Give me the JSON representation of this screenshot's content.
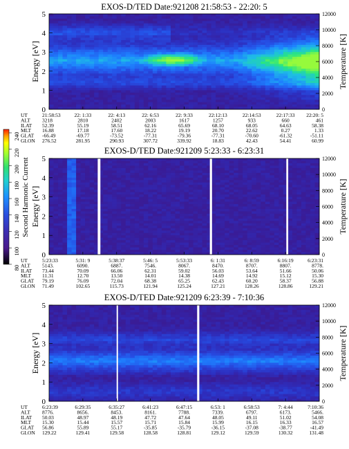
{
  "colorbar": {
    "label": "Second Harmonic Current",
    "ticks": [
      "80",
      "100",
      "120",
      "140",
      "160",
      "180",
      "200",
      "220",
      "240"
    ],
    "colors": [
      "#000000",
      "#4a1a8c",
      "#3c2fb4",
      "#2a4fe0",
      "#1e90ff",
      "#20d0d0",
      "#30e070",
      "#a0ff30",
      "#ffff00",
      "#ffa000",
      "#ff2000"
    ]
  },
  "chart_data": [
    {
      "type": "heatmap",
      "title": "EXOS-D/TED   Date:921208  21:58:53 - 22:20: 5",
      "ylabel": "Energy [eV]",
      "y2label": "Temperature [K]",
      "ylim": [
        0,
        5
      ],
      "y2lim": [
        0,
        12000
      ],
      "yticks": [
        "0",
        "1",
        "2",
        "3",
        "4",
        "5"
      ],
      "y2ticks": [
        "0",
        "2000",
        "4000",
        "6000",
        "8000",
        "10000",
        "12000"
      ],
      "row_labels": [
        "UT",
        "ALT",
        "ILAT",
        "MLT",
        "GLAT",
        "GLON"
      ],
      "columns": [
        [
          "21:58:53",
          "3218",
          "52.39",
          "16.88",
          "-66.49",
          "276.52"
        ],
        [
          "22: 1:33",
          "2810",
          "55.19",
          "17.18",
          "-69.77",
          "281.95"
        ],
        [
          "22: 4:13",
          "2402",
          "58.51",
          "17.60",
          "-73.52",
          "290.93"
        ],
        [
          "22: 6:53",
          "2003",
          "62.16",
          "18.22",
          "-77.31",
          "307.72"
        ],
        [
          "22: 9:33",
          "1617",
          "65.69",
          "19.19",
          "-79.36",
          "339.92"
        ],
        [
          "22:12:13",
          "1257",
          "68.10",
          "20.70",
          "-77.31",
          "18.83"
        ],
        [
          "22:14:53",
          "933",
          "68.05",
          "22.62",
          "-70.60",
          "42.43"
        ],
        [
          "22:17:33",
          "660",
          "64.63",
          "0.27",
          "-61.32",
          "54.41"
        ],
        [
          "22:20: 5",
          "461",
          "58.38",
          "1.33",
          "-51.11",
          "60.99"
        ]
      ]
    },
    {
      "type": "heatmap",
      "title": "EXOS-D/TED   Date:921209   5:23:33 - 6:23:31",
      "ylabel": "Energy [eV]",
      "y2label": "Temperature [K]",
      "ylim": [
        0,
        5
      ],
      "y2lim": [
        0,
        12000
      ],
      "yticks": [
        "0",
        "1",
        "2",
        "3",
        "4",
        "5"
      ],
      "y2ticks": [
        "0",
        "2000",
        "4000",
        "6000",
        "8000",
        "10000",
        "12000"
      ],
      "row_labels": [
        "UT",
        "ALT",
        "ILAT",
        "MLT",
        "GLAT",
        "GLON"
      ],
      "columns": [
        [
          "5:23:33",
          "5143.",
          "73.44",
          "11.31",
          "79.19",
          "71.49"
        ],
        [
          "5:31: 9",
          "6090.",
          "70.09",
          "12.70",
          "76.09",
          "102.65"
        ],
        [
          "5:38:37",
          "6887.",
          "66.06",
          "13.50",
          "72.04",
          "115.73"
        ],
        [
          "5:46: 5",
          "7546.",
          "62.31",
          "14.01",
          "68.38",
          "121.94"
        ],
        [
          "5:53:33",
          "8067.",
          "59.02",
          "14.38",
          "65.25",
          "125.24"
        ],
        [
          "6: 1:31",
          "8470.",
          "56.03",
          "14.69",
          "62.43",
          "127.21"
        ],
        [
          "6: 8:59",
          "8707.",
          "53.64",
          "14.92",
          "60.20",
          "128.26"
        ],
        [
          "6:16:19",
          "8807.",
          "51.66",
          "15.12",
          "58.37",
          "128.86"
        ],
        [
          "6:23:31",
          "8778.",
          "50.06",
          "15.30",
          "56.88",
          "129.21"
        ]
      ]
    },
    {
      "type": "heatmap",
      "title": "EXOS-D/TED   Date:921209   6:23:39 - 7:10:36",
      "ylabel": "Energy [eV]",
      "y2label": "Temperature [K]",
      "ylim": [
        0,
        5
      ],
      "y2lim": [
        0,
        12000
      ],
      "yticks": [
        "0",
        "1",
        "2",
        "3",
        "4",
        "5"
      ],
      "y2ticks": [
        "0",
        "2000",
        "4000",
        "6000",
        "8000",
        "10000",
        "12000"
      ],
      "row_labels": [
        "UT",
        "ALT",
        "ILAT",
        "MLT",
        "GLAT",
        "GLON"
      ],
      "columns": [
        [
          "6:23:39",
          "8776.",
          "50.03",
          "15.30",
          "56.86",
          "129.22"
        ],
        [
          "6:29:35",
          "8656.",
          "48.97",
          "15.44",
          "55.89",
          "129.41"
        ],
        [
          "6:35:27",
          "8453.",
          "48.19",
          "15.57",
          "55.17",
          "129.58"
        ],
        [
          "6:41:23",
          "8161.",
          "47.72",
          "15.71",
          "-35.85",
          "128.58"
        ],
        [
          "6:47:15",
          "7788.",
          "47.64",
          "15.84",
          "-35.79",
          "128.81"
        ],
        [
          "6:53: 1",
          "7339.",
          "48.05",
          "15.99",
          "-36.15",
          "129.12"
        ],
        [
          "6:58:53",
          "6797.",
          "49.11",
          "16.15",
          "-37.08",
          "129.59"
        ],
        [
          "7: 4:44",
          "6173.",
          "51.02",
          "16.33",
          "-38.77",
          "130.32"
        ],
        [
          "7:10:36",
          "5466.",
          "54.08",
          "16.57",
          "-41.49",
          "131.48"
        ]
      ]
    }
  ]
}
